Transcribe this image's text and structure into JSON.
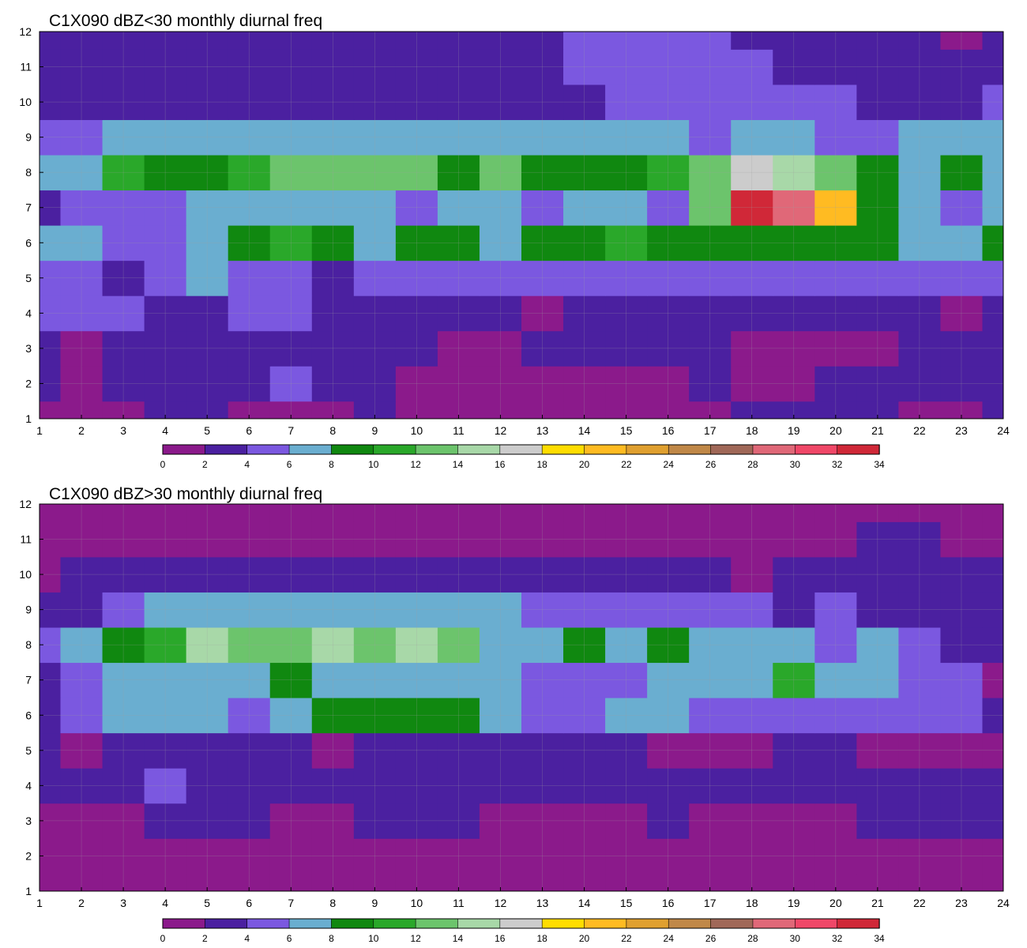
{
  "chart_data": [
    {
      "type": "heatmap",
      "title": "C1X090 dBZ<30 monthly diurnal freq",
      "xlabel": "",
      "ylabel": "",
      "x": [
        1,
        2,
        3,
        4,
        5,
        6,
        7,
        8,
        9,
        10,
        11,
        12,
        13,
        14,
        15,
        16,
        17,
        18,
        19,
        20,
        21,
        22,
        23,
        24
      ],
      "y": [
        1,
        2,
        3,
        4,
        5,
        6,
        7,
        8,
        9,
        10,
        11,
        12
      ],
      "xlim": [
        1,
        24
      ],
      "ylim": [
        1,
        12
      ],
      "grid": true,
      "colorbar": {
        "ticks": [
          0,
          2,
          4,
          6,
          8,
          10,
          12,
          14,
          16,
          18,
          20,
          22,
          24,
          26,
          28,
          30,
          32,
          34
        ],
        "colors": [
          "#8b1a8b",
          "#4b20a0",
          "#7b58e0",
          "#6aaed0",
          "#108810",
          "#2aa82a",
          "#6cc46c",
          "#a8d8a8",
          "#cccccc",
          "#ffdd00",
          "#ffbb22",
          "#e0a030",
          "#c08848",
          "#a06858",
          "#e06878",
          "#f04868",
          "#d02838"
        ]
      },
      "z": [
        [
          1,
          1,
          1,
          2,
          2,
          1,
          1,
          1,
          2,
          1,
          0,
          0,
          1,
          1,
          0,
          1,
          1,
          2,
          2,
          2,
          2,
          1,
          1,
          2
        ],
        [
          2,
          1,
          2,
          2,
          3,
          3,
          4,
          3,
          3,
          1,
          1,
          0,
          0,
          1,
          1,
          1,
          2,
          1,
          1,
          2,
          2,
          3,
          2,
          2
        ],
        [
          2,
          1,
          2,
          3,
          3,
          3,
          3,
          2,
          3,
          3,
          1,
          1,
          2,
          2,
          3,
          3,
          3,
          1,
          1,
          1,
          1,
          2,
          2,
          2
        ],
        [
          4,
          4,
          4,
          3,
          3,
          5,
          4,
          3,
          3,
          3,
          3,
          2,
          1,
          2,
          2,
          3,
          3,
          3,
          3,
          2,
          3,
          3,
          1,
          3
        ],
        [
          5,
          4,
          3,
          5,
          6,
          4,
          5,
          3,
          4,
          5,
          5,
          5,
          5,
          5,
          4,
          5,
          5,
          5,
          5,
          5,
          5,
          5,
          5,
          5
        ],
        [
          7,
          6,
          5,
          5,
          6,
          9,
          10,
          9,
          7,
          8,
          9,
          7,
          8,
          8,
          10,
          9,
          9,
          9,
          9,
          9,
          9,
          7,
          6,
          9
        ],
        [
          3,
          4,
          5,
          5,
          7,
          6,
          7,
          6,
          7,
          5,
          6,
          6,
          5,
          7,
          7,
          5,
          12,
          32,
          28,
          20,
          9,
          7,
          5,
          7
        ],
        [
          7,
          7,
          11,
          8,
          8,
          10,
          12,
          12,
          12,
          12,
          9,
          12,
          9,
          9,
          9,
          11,
          13,
          16,
          15,
          12,
          9,
          7,
          9,
          7
        ],
        [
          5,
          5,
          6,
          6,
          6,
          6,
          6,
          6,
          6,
          6,
          6,
          6,
          6,
          6,
          7,
          6,
          5,
          6,
          6,
          5,
          5,
          6,
          6,
          6
        ],
        [
          3,
          3,
          3,
          3,
          3,
          3,
          3,
          3,
          3,
          2,
          3,
          3,
          3,
          3,
          4,
          4,
          5,
          5,
          4,
          4,
          3,
          3,
          3,
          4
        ],
        [
          2,
          3,
          3,
          3,
          2,
          3,
          3,
          3,
          3,
          3,
          3,
          3,
          3,
          4,
          4,
          5,
          4,
          4,
          3,
          3,
          2,
          2,
          3,
          3
        ],
        [
          2,
          3,
          3,
          3,
          2,
          3,
          3,
          3,
          3,
          3,
          2,
          2,
          3,
          4,
          5,
          5,
          4,
          3,
          3,
          3,
          3,
          2,
          1,
          2
        ]
      ]
    },
    {
      "type": "heatmap",
      "title": "C1X090 dBZ>30 monthly diurnal freq",
      "xlabel": "",
      "ylabel": "",
      "x": [
        1,
        2,
        3,
        4,
        5,
        6,
        7,
        8,
        9,
        10,
        11,
        12,
        13,
        14,
        15,
        16,
        17,
        18,
        19,
        20,
        21,
        22,
        23,
        24
      ],
      "y": [
        1,
        2,
        3,
        4,
        5,
        6,
        7,
        8,
        9,
        10,
        11,
        12
      ],
      "xlim": [
        1,
        24
      ],
      "ylim": [
        1,
        12
      ],
      "grid": true,
      "colorbar": {
        "ticks": [
          0,
          2,
          4,
          6,
          8,
          10,
          12,
          14,
          16,
          18,
          20,
          22,
          24,
          26,
          28,
          30,
          32,
          34
        ],
        "colors": [
          "#8b1a8b",
          "#4b20a0",
          "#7b58e0",
          "#6aaed0",
          "#108810",
          "#2aa82a",
          "#6cc46c",
          "#a8d8a8",
          "#cccccc",
          "#ffdd00",
          "#ffbb22",
          "#e0a030",
          "#c08848",
          "#a06858",
          "#e06878",
          "#f04868",
          "#d02838"
        ]
      },
      "z": [
        [
          1,
          1,
          1,
          1,
          1,
          1,
          1,
          1,
          1,
          1,
          1,
          1,
          1,
          1,
          1,
          1,
          1,
          1,
          1,
          1,
          1,
          1,
          1,
          1
        ],
        [
          1,
          1,
          1,
          1,
          1,
          1,
          1,
          1,
          1,
          1,
          1,
          1,
          1,
          1,
          1,
          1,
          1,
          1,
          1,
          1,
          1,
          1,
          1,
          1
        ],
        [
          1,
          1,
          1,
          2,
          2,
          2,
          1,
          1,
          2,
          2,
          2,
          1,
          1,
          1,
          1,
          2,
          1,
          1,
          1,
          1,
          2,
          2,
          2,
          2
        ],
        [
          3,
          2,
          2,
          4,
          3,
          3,
          3,
          3,
          3,
          3,
          3,
          2,
          3,
          3,
          3,
          3,
          3,
          3,
          3,
          3,
          2,
          3,
          3,
          3
        ],
        [
          2,
          1,
          3,
          3,
          3,
          3,
          3,
          1,
          3,
          3,
          3,
          3,
          3,
          3,
          3,
          1,
          1,
          1,
          3,
          3,
          1,
          1,
          1,
          1
        ],
        [
          3,
          5,
          6,
          6,
          6,
          5,
          7,
          8,
          8,
          8,
          9,
          6,
          5,
          5,
          7,
          7,
          5,
          5,
          4,
          5,
          5,
          5,
          5,
          3
        ],
        [
          3,
          5,
          6,
          6,
          7,
          7,
          8,
          7,
          7,
          7,
          6,
          7,
          5,
          5,
          5,
          6,
          7,
          6,
          11,
          7,
          6,
          5,
          4,
          1
        ],
        [
          5,
          6,
          9,
          11,
          15,
          13,
          13,
          15,
          13,
          14,
          13,
          7,
          6,
          9,
          6,
          9,
          6,
          6,
          7,
          5,
          7,
          4,
          3,
          2
        ],
        [
          2,
          3,
          5,
          6,
          6,
          6,
          6,
          6,
          6,
          6,
          6,
          6,
          5,
          5,
          5,
          5,
          5,
          4,
          3,
          4,
          3,
          3,
          3,
          3
        ],
        [
          1,
          2,
          2,
          2,
          2,
          2,
          2,
          2,
          2,
          2,
          2,
          2,
          2,
          2,
          3,
          2,
          2,
          1,
          2,
          2,
          3,
          3,
          3,
          3
        ],
        [
          1,
          1,
          1,
          1,
          1,
          1,
          1,
          1,
          1,
          1,
          1,
          1,
          1,
          1,
          1,
          1,
          1,
          1,
          1,
          1,
          2,
          2,
          1,
          1
        ],
        [
          1,
          1,
          1,
          1,
          1,
          1,
          1,
          1,
          1,
          1,
          1,
          1,
          1,
          1,
          1,
          1,
          1,
          1,
          1,
          1,
          1,
          1,
          1,
          1
        ]
      ]
    }
  ]
}
